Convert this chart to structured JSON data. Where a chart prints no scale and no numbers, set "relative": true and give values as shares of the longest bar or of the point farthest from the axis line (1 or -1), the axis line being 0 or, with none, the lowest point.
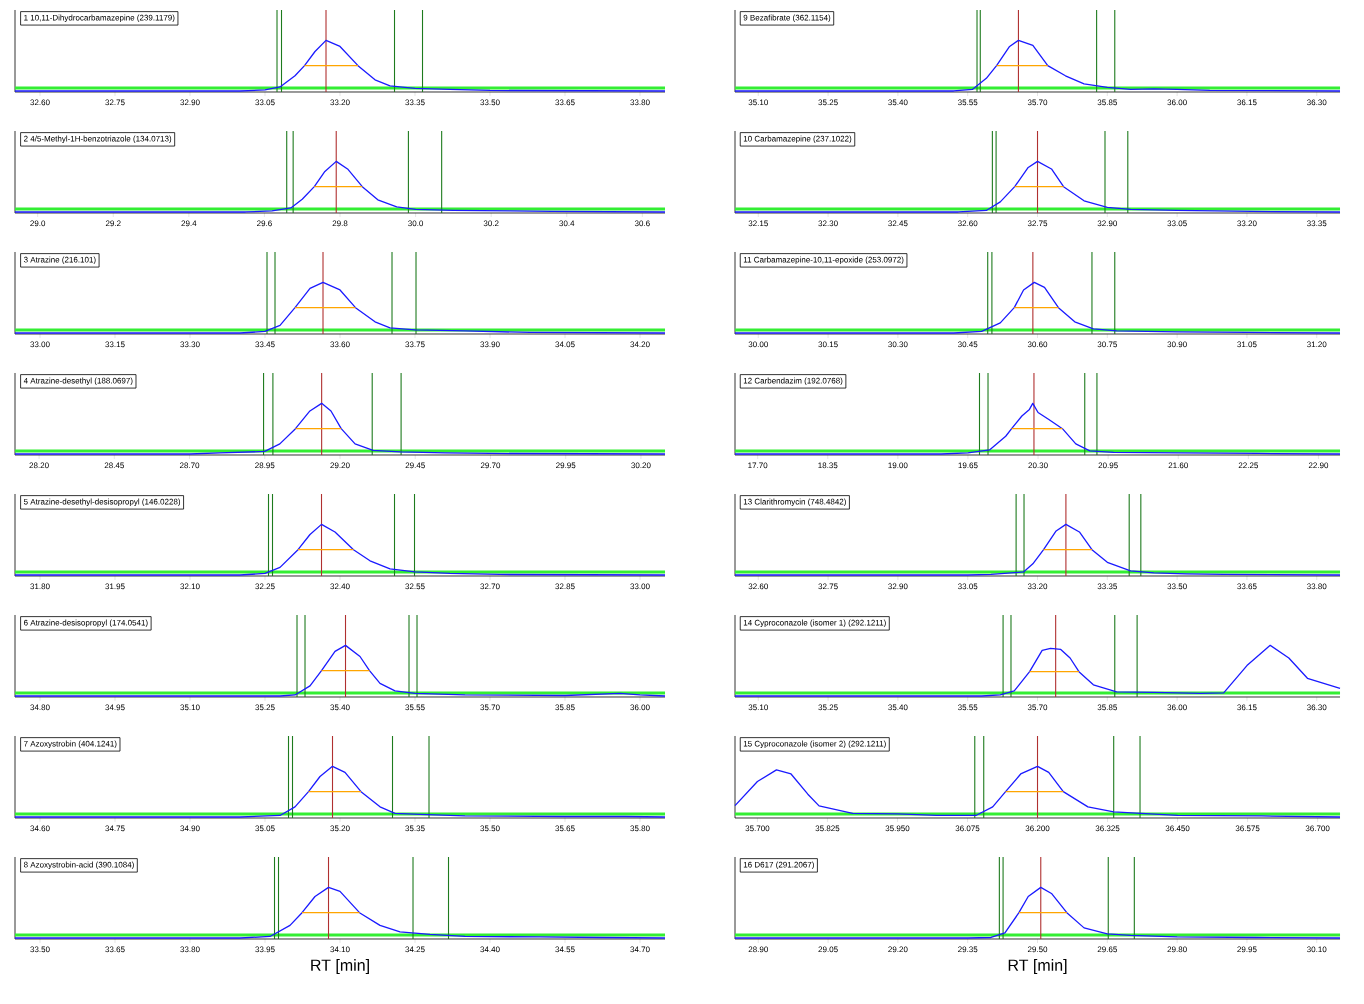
{
  "chart_data": [
    {
      "type": "line",
      "relative": true,
      "title": "1 10,11-Dihydrocarbamazepine (239.1179)",
      "xlim": [
        32.55,
        33.85
      ],
      "xticks": [
        {
          "value": 32.6,
          "label": "32.60"
        },
        {
          "value": 32.75,
          "label": "32.75"
        },
        {
          "value": 32.9,
          "label": "32.90"
        },
        {
          "value": 33.05,
          "label": "33.05"
        },
        {
          "value": 33.2,
          "label": "33.20"
        },
        {
          "value": 33.35,
          "label": "33.35"
        },
        {
          "value": 33.5,
          "label": "33.50"
        },
        {
          "value": 33.65,
          "label": "33.65"
        },
        {
          "value": 33.8,
          "label": "33.80"
        }
      ],
      "bands": [
        {
          "axis": "y",
          "from": 0.03,
          "to": 0.09,
          "color": "#33ee33"
        }
      ],
      "ref_lines": [
        {
          "axis": "x",
          "value": 33.074,
          "color": "#1e7b1e"
        },
        {
          "axis": "x",
          "value": 33.083,
          "color": "#1e7b1e"
        },
        {
          "axis": "x",
          "value": 33.309,
          "color": "#1e7b1e"
        },
        {
          "axis": "x",
          "value": 33.365,
          "color": "#1e7b1e"
        },
        {
          "axis": "x",
          "value": 33.172,
          "color": "#b03030"
        }
      ],
      "series": [
        {
          "color": "#1a1aff",
          "x": [
            32.55,
            33.0,
            33.05,
            33.08,
            33.11,
            33.129,
            33.15,
            33.172,
            33.2,
            33.236,
            33.27,
            33.3,
            33.35,
            33.42,
            33.5,
            33.85
          ],
          "values": [
            0,
            0,
            0.02,
            0.08,
            0.3,
            0.5,
            0.78,
            1,
            0.88,
            0.5,
            0.22,
            0.1,
            0.05,
            0.03,
            0.01,
            0
          ]
        },
        {
          "color": "#ffa500",
          "x": [
            33.129,
            33.236
          ],
          "values": [
            0.5,
            0.5
          ]
        }
      ]
    },
    {
      "type": "line",
      "relative": true,
      "title": "2 4/5-Methyl-1H-benzotriazole (134.0713)",
      "xlim": [
        28.94,
        30.66
      ],
      "xticks": [
        {
          "value": 29.0,
          "label": "29.0"
        },
        {
          "value": 29.2,
          "label": "29.2"
        },
        {
          "value": 29.4,
          "label": "29.4"
        },
        {
          "value": 29.6,
          "label": "29.6"
        },
        {
          "value": 29.8,
          "label": "29.8"
        },
        {
          "value": 30.0,
          "label": "30.0"
        },
        {
          "value": 30.2,
          "label": "30.2"
        },
        {
          "value": 30.4,
          "label": "30.4"
        },
        {
          "value": 30.6,
          "label": "30.6"
        }
      ],
      "bands": [
        {
          "axis": "y",
          "from": 0.03,
          "to": 0.09,
          "color": "#33ee33"
        }
      ],
      "ref_lines": [
        {
          "axis": "x",
          "value": 29.659,
          "color": "#1e7b1e"
        },
        {
          "axis": "x",
          "value": 29.676,
          "color": "#1e7b1e"
        },
        {
          "axis": "x",
          "value": 29.981,
          "color": "#1e7b1e"
        },
        {
          "axis": "x",
          "value": 30.069,
          "color": "#1e7b1e"
        },
        {
          "axis": "x",
          "value": 29.79,
          "color": "#b03030"
        }
      ],
      "series": [
        {
          "color": "#1a1aff",
          "x": [
            28.94,
            29.55,
            29.62,
            29.67,
            29.7,
            29.732,
            29.76,
            29.79,
            29.82,
            29.859,
            29.9,
            29.95,
            30.0,
            30.1,
            30.25,
            30.36,
            30.66
          ],
          "values": [
            0,
            0,
            0.02,
            0.08,
            0.25,
            0.5,
            0.8,
            1,
            0.85,
            0.5,
            0.24,
            0.1,
            0.05,
            0.03,
            0.02,
            0.01,
            0
          ]
        },
        {
          "color": "#ffa500",
          "x": [
            29.732,
            29.859
          ],
          "values": [
            0.5,
            0.5
          ]
        }
      ]
    },
    {
      "type": "line",
      "relative": true,
      "title": "3 Atrazine (216.101)",
      "xlim": [
        32.95,
        34.25
      ],
      "xticks": [
        {
          "value": 33.0,
          "label": "33.00"
        },
        {
          "value": 33.15,
          "label": "33.15"
        },
        {
          "value": 33.3,
          "label": "33.30"
        },
        {
          "value": 33.45,
          "label": "33.45"
        },
        {
          "value": 33.6,
          "label": "33.60"
        },
        {
          "value": 33.75,
          "label": "33.75"
        },
        {
          "value": 33.9,
          "label": "33.90"
        },
        {
          "value": 34.05,
          "label": "34.05"
        },
        {
          "value": 34.2,
          "label": "34.20"
        }
      ],
      "bands": [
        {
          "axis": "y",
          "from": 0.03,
          "to": 0.09,
          "color": "#33ee33"
        }
      ],
      "ref_lines": [
        {
          "axis": "x",
          "value": 33.454,
          "color": "#1e7b1e"
        },
        {
          "axis": "x",
          "value": 33.47,
          "color": "#1e7b1e"
        },
        {
          "axis": "x",
          "value": 33.704,
          "color": "#1e7b1e"
        },
        {
          "axis": "x",
          "value": 33.752,
          "color": "#1e7b1e"
        },
        {
          "axis": "x",
          "value": 33.566,
          "color": "#b03030"
        }
      ],
      "series": [
        {
          "color": "#1a1aff",
          "x": [
            32.95,
            33.4,
            33.45,
            33.48,
            33.51,
            33.54,
            33.566,
            33.6,
            33.631,
            33.67,
            33.7,
            33.75,
            33.85,
            33.98,
            34.25
          ],
          "values": [
            0,
            0,
            0.03,
            0.15,
            0.5,
            0.88,
            1,
            0.85,
            0.5,
            0.22,
            0.1,
            0.06,
            0.04,
            0.01,
            0
          ]
        },
        {
          "color": "#ffa500",
          "x": [
            33.51,
            33.631
          ],
          "values": [
            0.5,
            0.5
          ]
        }
      ]
    },
    {
      "type": "line",
      "relative": true,
      "title": "4 Atrazine-desethyl (188.0697)",
      "xlim": [
        28.12,
        30.28
      ],
      "xticks": [
        {
          "value": 28.2,
          "label": "28.20"
        },
        {
          "value": 28.45,
          "label": "28.45"
        },
        {
          "value": 28.7,
          "label": "28.70"
        },
        {
          "value": 28.95,
          "label": "28.95"
        },
        {
          "value": 29.2,
          "label": "29.20"
        },
        {
          "value": 29.45,
          "label": "29.45"
        },
        {
          "value": 29.7,
          "label": "29.70"
        },
        {
          "value": 29.95,
          "label": "29.95"
        },
        {
          "value": 30.2,
          "label": "30.20"
        }
      ],
      "bands": [
        {
          "axis": "y",
          "from": 0.03,
          "to": 0.09,
          "color": "#33ee33"
        }
      ],
      "ref_lines": [
        {
          "axis": "x",
          "value": 28.946,
          "color": "#1e7b1e"
        },
        {
          "axis": "x",
          "value": 28.977,
          "color": "#1e7b1e"
        },
        {
          "axis": "x",
          "value": 29.307,
          "color": "#1e7b1e"
        },
        {
          "axis": "x",
          "value": 29.403,
          "color": "#1e7b1e"
        },
        {
          "axis": "x",
          "value": 29.139,
          "color": "#b03030"
        }
      ],
      "series": [
        {
          "color": "#1a1aff",
          "x": [
            28.12,
            28.7,
            28.8,
            28.95,
            29.0,
            29.052,
            29.1,
            29.139,
            29.17,
            29.204,
            29.25,
            29.31,
            29.4,
            29.55,
            29.7,
            30.28
          ],
          "values": [
            0,
            0,
            0.02,
            0.05,
            0.2,
            0.5,
            0.85,
            1,
            0.85,
            0.5,
            0.2,
            0.07,
            0.04,
            0.02,
            0.01,
            0
          ]
        },
        {
          "color": "#ffa500",
          "x": [
            29.052,
            29.204
          ],
          "values": [
            0.5,
            0.5
          ]
        }
      ]
    },
    {
      "type": "line",
      "relative": true,
      "title": "5 Atrazine-desethyl-desisopropyl (146.0228)",
      "xlim": [
        31.75,
        33.05
      ],
      "xticks": [
        {
          "value": 31.8,
          "label": "31.80"
        },
        {
          "value": 31.95,
          "label": "31.95"
        },
        {
          "value": 32.1,
          "label": "32.10"
        },
        {
          "value": 32.25,
          "label": "32.25"
        },
        {
          "value": 32.4,
          "label": "32.40"
        },
        {
          "value": 32.55,
          "label": "32.55"
        },
        {
          "value": 32.7,
          "label": "32.70"
        },
        {
          "value": 32.85,
          "label": "32.85"
        },
        {
          "value": 33.0,
          "label": "33.00"
        }
      ],
      "bands": [
        {
          "axis": "y",
          "from": 0.03,
          "to": 0.09,
          "color": "#33ee33"
        }
      ],
      "ref_lines": [
        {
          "axis": "x",
          "value": 32.257,
          "color": "#1e7b1e"
        },
        {
          "axis": "x",
          "value": 32.265,
          "color": "#1e7b1e"
        },
        {
          "axis": "x",
          "value": 32.509,
          "color": "#1e7b1e"
        },
        {
          "axis": "x",
          "value": 32.549,
          "color": "#1e7b1e"
        },
        {
          "axis": "x",
          "value": 32.363,
          "color": "#b03030"
        }
      ],
      "series": [
        {
          "color": "#1a1aff",
          "x": [
            31.75,
            32.2,
            32.25,
            32.28,
            32.316,
            32.34,
            32.363,
            32.39,
            32.427,
            32.46,
            32.5,
            32.55,
            32.62,
            32.72,
            33.05
          ],
          "values": [
            0,
            0,
            0.03,
            0.15,
            0.5,
            0.8,
            1,
            0.85,
            0.5,
            0.28,
            0.12,
            0.06,
            0.03,
            0.01,
            0
          ]
        },
        {
          "color": "#ffa500",
          "x": [
            32.316,
            32.427
          ],
          "values": [
            0.5,
            0.5
          ]
        }
      ]
    },
    {
      "type": "line",
      "relative": true,
      "title": "6 Atrazine-desisopropyl (174.0541)",
      "xlim": [
        34.75,
        36.05
      ],
      "xticks": [
        {
          "value": 34.8,
          "label": "34.80"
        },
        {
          "value": 34.95,
          "label": "34.95"
        },
        {
          "value": 35.1,
          "label": "35.10"
        },
        {
          "value": 35.25,
          "label": "35.25"
        },
        {
          "value": 35.4,
          "label": "35.40"
        },
        {
          "value": 35.55,
          "label": "35.55"
        },
        {
          "value": 35.7,
          "label": "35.70"
        },
        {
          "value": 35.85,
          "label": "35.85"
        },
        {
          "value": 36.0,
          "label": "36.00"
        }
      ],
      "bands": [
        {
          "axis": "y",
          "from": 0.03,
          "to": 0.09,
          "color": "#33ee33"
        }
      ],
      "ref_lines": [
        {
          "axis": "x",
          "value": 35.314,
          "color": "#1e7b1e"
        },
        {
          "axis": "x",
          "value": 35.33,
          "color": "#1e7b1e"
        },
        {
          "axis": "x",
          "value": 35.538,
          "color": "#1e7b1e"
        },
        {
          "axis": "x",
          "value": 35.554,
          "color": "#1e7b1e"
        },
        {
          "axis": "x",
          "value": 35.411,
          "color": "#b03030"
        }
      ],
      "series": [
        {
          "color": "#1a1aff",
          "x": [
            34.75,
            35.28,
            35.31,
            35.34,
            35.363,
            35.39,
            35.411,
            35.44,
            35.459,
            35.48,
            35.51,
            35.55,
            35.65,
            35.85,
            35.96,
            36.0,
            36.05
          ],
          "values": [
            0,
            0,
            0.02,
            0.2,
            0.5,
            0.88,
            1,
            0.78,
            0.5,
            0.25,
            0.1,
            0.05,
            0.02,
            0.01,
            0.05,
            0.02,
            0
          ]
        },
        {
          "color": "#ffa500",
          "x": [
            35.363,
            35.459
          ],
          "values": [
            0.5,
            0.5
          ]
        }
      ]
    },
    {
      "type": "line",
      "relative": true,
      "title": "7 Azoxystrobin (404.1241)",
      "xlim": [
        34.55,
        35.85
      ],
      "xticks": [
        {
          "value": 34.6,
          "label": "34.60"
        },
        {
          "value": 34.75,
          "label": "34.75"
        },
        {
          "value": 34.9,
          "label": "34.90"
        },
        {
          "value": 35.05,
          "label": "35.05"
        },
        {
          "value": 35.2,
          "label": "35.20"
        },
        {
          "value": 35.35,
          "label": "35.35"
        },
        {
          "value": 35.5,
          "label": "35.50"
        },
        {
          "value": 35.65,
          "label": "35.65"
        },
        {
          "value": 35.8,
          "label": "35.80"
        }
      ],
      "bands": [
        {
          "axis": "y",
          "from": 0.03,
          "to": 0.09,
          "color": "#33ee33"
        }
      ],
      "ref_lines": [
        {
          "axis": "x",
          "value": 35.097,
          "color": "#1e7b1e"
        },
        {
          "axis": "x",
          "value": 35.105,
          "color": "#1e7b1e"
        },
        {
          "axis": "x",
          "value": 35.305,
          "color": "#1e7b1e"
        },
        {
          "axis": "x",
          "value": 35.378,
          "color": "#1e7b1e"
        },
        {
          "axis": "x",
          "value": 35.185,
          "color": "#b03030"
        }
      ],
      "series": [
        {
          "color": "#1a1aff",
          "x": [
            34.55,
            35.0,
            35.08,
            35.11,
            35.137,
            35.16,
            35.185,
            35.21,
            35.242,
            35.28,
            35.31,
            35.36,
            35.45,
            35.65,
            35.77,
            35.85
          ],
          "values": [
            0,
            0,
            0.03,
            0.2,
            0.5,
            0.8,
            1,
            0.88,
            0.5,
            0.2,
            0.07,
            0.05,
            0.02,
            0.01,
            0.01,
            0
          ]
        },
        {
          "color": "#ffa500",
          "x": [
            35.137,
            35.242
          ],
          "values": [
            0.5,
            0.5
          ]
        }
      ]
    },
    {
      "type": "line",
      "relative": true,
      "title": "8 Azoxystrobin-acid (390.1084)",
      "xlabel": "RT [min]",
      "xlim": [
        33.45,
        34.75
      ],
      "xticks": [
        {
          "value": 33.5,
          "label": "33.50"
        },
        {
          "value": 33.65,
          "label": "33.65"
        },
        {
          "value": 33.8,
          "label": "33.80"
        },
        {
          "value": 33.95,
          "label": "33.95"
        },
        {
          "value": 34.1,
          "label": "34.10"
        },
        {
          "value": 34.25,
          "label": "34.25"
        },
        {
          "value": 34.4,
          "label": "34.40"
        },
        {
          "value": 34.55,
          "label": "34.55"
        },
        {
          "value": 34.7,
          "label": "34.70"
        }
      ],
      "bands": [
        {
          "axis": "y",
          "from": 0.03,
          "to": 0.09,
          "color": "#33ee33"
        }
      ],
      "ref_lines": [
        {
          "axis": "x",
          "value": 33.969,
          "color": "#1e7b1e"
        },
        {
          "axis": "x",
          "value": 33.977,
          "color": "#1e7b1e"
        },
        {
          "axis": "x",
          "value": 34.246,
          "color": "#1e7b1e"
        },
        {
          "axis": "x",
          "value": 34.317,
          "color": "#1e7b1e"
        },
        {
          "axis": "x",
          "value": 34.077,
          "color": "#b03030"
        }
      ],
      "series": [
        {
          "color": "#1a1aff",
          "x": [
            33.45,
            33.9,
            33.96,
            34.0,
            34.024,
            34.05,
            34.077,
            34.1,
            34.139,
            34.18,
            34.22,
            34.28,
            34.35,
            34.5,
            34.62,
            34.75
          ],
          "values": [
            0,
            0,
            0.03,
            0.25,
            0.5,
            0.82,
            1,
            0.92,
            0.5,
            0.25,
            0.12,
            0.07,
            0.03,
            0.02,
            0.01,
            0
          ]
        },
        {
          "color": "#ffa500",
          "x": [
            34.024,
            34.139
          ],
          "values": [
            0.5,
            0.5
          ]
        }
      ]
    },
    {
      "type": "line",
      "relative": true,
      "title": "9 Bezafibrate (362.1154)",
      "xlim": [
        35.05,
        36.35
      ],
      "xticks": [
        {
          "value": 35.1,
          "label": "35.10"
        },
        {
          "value": 35.25,
          "label": "35.25"
        },
        {
          "value": 35.4,
          "label": "35.40"
        },
        {
          "value": 35.55,
          "label": "35.55"
        },
        {
          "value": 35.7,
          "label": "35.70"
        },
        {
          "value": 35.85,
          "label": "35.85"
        },
        {
          "value": 36.0,
          "label": "36.00"
        },
        {
          "value": 36.15,
          "label": "36.15"
        },
        {
          "value": 36.3,
          "label": "36.30"
        }
      ],
      "bands": [
        {
          "axis": "y",
          "from": 0.03,
          "to": 0.09,
          "color": "#33ee33"
        }
      ],
      "ref_lines": [
        {
          "axis": "x",
          "value": 35.57,
          "color": "#1e7b1e"
        },
        {
          "axis": "x",
          "value": 35.577,
          "color": "#1e7b1e"
        },
        {
          "axis": "x",
          "value": 35.827,
          "color": "#1e7b1e"
        },
        {
          "axis": "x",
          "value": 35.866,
          "color": "#1e7b1e"
        },
        {
          "axis": "x",
          "value": 35.659,
          "color": "#b03030"
        }
      ],
      "series": [
        {
          "color": "#1a1aff",
          "x": [
            35.05,
            35.52,
            35.56,
            35.59,
            35.612,
            35.64,
            35.659,
            35.69,
            35.722,
            35.76,
            35.8,
            35.85,
            35.9,
            35.95,
            36.0,
            36.07,
            36.35
          ],
          "values": [
            0,
            0,
            0.03,
            0.25,
            0.5,
            0.88,
            1,
            0.9,
            0.5,
            0.3,
            0.14,
            0.07,
            0.03,
            0.04,
            0.03,
            0.01,
            0
          ]
        },
        {
          "color": "#ffa500",
          "x": [
            35.612,
            35.722
          ],
          "values": [
            0.5,
            0.5
          ]
        }
      ]
    },
    {
      "type": "line",
      "relative": true,
      "title": "10 Carbamazepine (237.1022)",
      "xlim": [
        32.1,
        33.4
      ],
      "xticks": [
        {
          "value": 32.15,
          "label": "32.15"
        },
        {
          "value": 32.3,
          "label": "32.30"
        },
        {
          "value": 32.45,
          "label": "32.45"
        },
        {
          "value": 32.6,
          "label": "32.60"
        },
        {
          "value": 32.75,
          "label": "32.75"
        },
        {
          "value": 32.9,
          "label": "32.90"
        },
        {
          "value": 33.05,
          "label": "33.05"
        },
        {
          "value": 33.2,
          "label": "33.20"
        },
        {
          "value": 33.35,
          "label": "33.35"
        }
      ],
      "bands": [
        {
          "axis": "y",
          "from": 0.03,
          "to": 0.09,
          "color": "#33ee33"
        }
      ],
      "ref_lines": [
        {
          "axis": "x",
          "value": 32.653,
          "color": "#1e7b1e"
        },
        {
          "axis": "x",
          "value": 32.661,
          "color": "#1e7b1e"
        },
        {
          "axis": "x",
          "value": 32.895,
          "color": "#1e7b1e"
        },
        {
          "axis": "x",
          "value": 32.944,
          "color": "#1e7b1e"
        },
        {
          "axis": "x",
          "value": 32.75,
          "color": "#b03030"
        }
      ],
      "series": [
        {
          "color": "#1a1aff",
          "x": [
            32.1,
            32.58,
            32.64,
            32.67,
            32.701,
            32.73,
            32.75,
            32.78,
            32.806,
            32.85,
            32.9,
            32.95,
            33.05,
            33.21,
            33.4
          ],
          "values": [
            0,
            0,
            0.03,
            0.2,
            0.5,
            0.88,
            1,
            0.85,
            0.5,
            0.22,
            0.09,
            0.05,
            0.03,
            0.01,
            0
          ]
        },
        {
          "color": "#ffa500",
          "x": [
            32.701,
            32.806
          ],
          "values": [
            0.5,
            0.5
          ]
        }
      ]
    },
    {
      "type": "line",
      "relative": true,
      "title": "11 Carbamazepine-10,11-epoxide (253.0972)",
      "xlim": [
        29.95,
        31.25
      ],
      "xticks": [
        {
          "value": 30.0,
          "label": "30.00"
        },
        {
          "value": 30.15,
          "label": "30.15"
        },
        {
          "value": 30.3,
          "label": "30.30"
        },
        {
          "value": 30.45,
          "label": "30.45"
        },
        {
          "value": 30.6,
          "label": "30.60"
        },
        {
          "value": 30.75,
          "label": "30.75"
        },
        {
          "value": 30.9,
          "label": "30.90"
        },
        {
          "value": 31.05,
          "label": "31.05"
        },
        {
          "value": 31.2,
          "label": "31.20"
        }
      ],
      "bands": [
        {
          "axis": "y",
          "from": 0.03,
          "to": 0.09,
          "color": "#33ee33"
        }
      ],
      "ref_lines": [
        {
          "axis": "x",
          "value": 30.493,
          "color": "#1e7b1e"
        },
        {
          "axis": "x",
          "value": 30.502,
          "color": "#1e7b1e"
        },
        {
          "axis": "x",
          "value": 30.717,
          "color": "#1e7b1e"
        },
        {
          "axis": "x",
          "value": 30.766,
          "color": "#1e7b1e"
        },
        {
          "axis": "x",
          "value": 30.59,
          "color": "#b03030"
        }
      ],
      "series": [
        {
          "color": "#1a1aff",
          "x": [
            29.95,
            30.42,
            30.48,
            30.52,
            30.55,
            30.57,
            30.593,
            30.615,
            30.645,
            30.68,
            30.72,
            30.77,
            30.9,
            31.05,
            31.25
          ],
          "values": [
            0,
            0,
            0.03,
            0.2,
            0.5,
            0.85,
            1,
            0.9,
            0.5,
            0.22,
            0.08,
            0.04,
            0.02,
            0.01,
            0
          ]
        },
        {
          "color": "#ffa500",
          "x": [
            30.55,
            30.645
          ],
          "values": [
            0.5,
            0.5
          ]
        }
      ]
    },
    {
      "type": "line",
      "relative": true,
      "title": "12 Carbendazim (192.0768)",
      "xlim": [
        17.49,
        23.1
      ],
      "xticks": [
        {
          "value": 17.7,
          "label": "17.70"
        },
        {
          "value": 18.35,
          "label": "18.35"
        },
        {
          "value": 19.0,
          "label": "19.00"
        },
        {
          "value": 19.65,
          "label": "19.65"
        },
        {
          "value": 20.3,
          "label": "20.30"
        },
        {
          "value": 20.95,
          "label": "20.95"
        },
        {
          "value": 21.6,
          "label": "21.60"
        },
        {
          "value": 22.25,
          "label": "22.25"
        },
        {
          "value": 22.9,
          "label": "22.90"
        }
      ],
      "bands": [
        {
          "axis": "y",
          "from": 0.03,
          "to": 0.09,
          "color": "#33ee33"
        }
      ],
      "ref_lines": [
        {
          "axis": "x",
          "value": 19.757,
          "color": "#1e7b1e"
        },
        {
          "axis": "x",
          "value": 19.836,
          "color": "#1e7b1e"
        },
        {
          "axis": "x",
          "value": 20.733,
          "color": "#1e7b1e"
        },
        {
          "axis": "x",
          "value": 20.846,
          "color": "#1e7b1e"
        },
        {
          "axis": "x",
          "value": 20.262,
          "color": "#b03030"
        }
      ],
      "series": [
        {
          "color": "#1a1aff",
          "x": [
            17.49,
            19.4,
            19.65,
            19.85,
            20.0,
            20.055,
            20.15,
            20.22,
            20.251,
            20.3,
            20.4,
            20.526,
            20.65,
            20.78,
            21.0,
            21.6,
            22.34,
            23.1
          ],
          "values": [
            0,
            0,
            0.02,
            0.08,
            0.35,
            0.5,
            0.75,
            0.88,
            1,
            0.82,
            0.68,
            0.5,
            0.2,
            0.06,
            0.03,
            0.02,
            0.01,
            0
          ]
        },
        {
          "color": "#ffa500",
          "x": [
            20.055,
            20.526
          ],
          "values": [
            0.5,
            0.5
          ]
        }
      ]
    },
    {
      "type": "line",
      "relative": true,
      "title": "13 Clarithromycin (748.4842)",
      "xlim": [
        32.55,
        33.85
      ],
      "xticks": [
        {
          "value": 32.6,
          "label": "32.60"
        },
        {
          "value": 32.75,
          "label": "32.75"
        },
        {
          "value": 32.9,
          "label": "32.90"
        },
        {
          "value": 33.05,
          "label": "33.05"
        },
        {
          "value": 33.2,
          "label": "33.20"
        },
        {
          "value": 33.35,
          "label": "33.35"
        },
        {
          "value": 33.5,
          "label": "33.50"
        },
        {
          "value": 33.65,
          "label": "33.65"
        },
        {
          "value": 33.8,
          "label": "33.80"
        }
      ],
      "bands": [
        {
          "axis": "y",
          "from": 0.03,
          "to": 0.09,
          "color": "#33ee33"
        }
      ],
      "ref_lines": [
        {
          "axis": "x",
          "value": 33.154,
          "color": "#1e7b1e"
        },
        {
          "axis": "x",
          "value": 33.171,
          "color": "#1e7b1e"
        },
        {
          "axis": "x",
          "value": 33.397,
          "color": "#1e7b1e"
        },
        {
          "axis": "x",
          "value": 33.422,
          "color": "#1e7b1e"
        },
        {
          "axis": "x",
          "value": 33.261,
          "color": "#b03030"
        }
      ],
      "series": [
        {
          "color": "#1a1aff",
          "x": [
            32.55,
            33.05,
            33.1,
            33.17,
            33.19,
            33.213,
            33.24,
            33.261,
            33.29,
            33.317,
            33.35,
            33.4,
            33.45,
            33.52,
            33.6,
            33.85
          ],
          "values": [
            0,
            0,
            0.01,
            0.06,
            0.22,
            0.5,
            0.87,
            1,
            0.85,
            0.5,
            0.25,
            0.08,
            0.04,
            0.02,
            0.01,
            0
          ]
        },
        {
          "color": "#ffa500",
          "x": [
            33.213,
            33.317
          ],
          "values": [
            0.5,
            0.5
          ]
        }
      ]
    },
    {
      "type": "line",
      "relative": true,
      "title": "14 Cyproconazole (isomer 1) (292.1211)",
      "xlim": [
        35.05,
        36.35
      ],
      "xticks": [
        {
          "value": 35.1,
          "label": "35.10"
        },
        {
          "value": 35.25,
          "label": "35.25"
        },
        {
          "value": 35.4,
          "label": "35.40"
        },
        {
          "value": 35.55,
          "label": "35.55"
        },
        {
          "value": 35.7,
          "label": "35.70"
        },
        {
          "value": 35.85,
          "label": "35.85"
        },
        {
          "value": 36.0,
          "label": "36.00"
        },
        {
          "value": 36.15,
          "label": "36.15"
        },
        {
          "value": 36.3,
          "label": "36.30"
        }
      ],
      "bands": [
        {
          "axis": "y",
          "from": 0.03,
          "to": 0.09,
          "color": "#33ee33"
        }
      ],
      "ref_lines": [
        {
          "axis": "x",
          "value": 35.626,
          "color": "#1e7b1e"
        },
        {
          "axis": "x",
          "value": 35.643,
          "color": "#1e7b1e"
        },
        {
          "axis": "x",
          "value": 35.866,
          "color": "#1e7b1e"
        },
        {
          "axis": "x",
          "value": 35.914,
          "color": "#1e7b1e"
        },
        {
          "axis": "x",
          "value": 35.739,
          "color": "#b03030"
        }
      ],
      "series": [
        {
          "color": "#1a1aff",
          "x": [
            35.05,
            35.58,
            35.62,
            35.65,
            35.683,
            35.71,
            35.728,
            35.75,
            35.77,
            35.789,
            35.82,
            35.87,
            35.95,
            36.05,
            36.1,
            36.15,
            36.2,
            36.24,
            36.28,
            36.35
          ],
          "values": [
            0,
            0,
            0.02,
            0.1,
            0.48,
            0.9,
            0.94,
            0.92,
            0.75,
            0.48,
            0.22,
            0.08,
            0.07,
            0.05,
            0.06,
            0.6,
            1,
            0.75,
            0.35,
            0.15
          ]
        },
        {
          "color": "#ffa500",
          "x": [
            35.683,
            35.789
          ],
          "values": [
            0.48,
            0.48
          ]
        }
      ]
    },
    {
      "type": "line",
      "relative": true,
      "title": "15 Cyproconazole (isomer 2) (292.1211)",
      "xlim": [
        35.66,
        36.74
      ],
      "xticks": [
        {
          "value": 35.7,
          "label": "35.700"
        },
        {
          "value": 35.825,
          "label": "35.825"
        },
        {
          "value": 35.95,
          "label": "35.950"
        },
        {
          "value": 36.075,
          "label": "36.075"
        },
        {
          "value": 36.2,
          "label": "36.200"
        },
        {
          "value": 36.325,
          "label": "36.325"
        },
        {
          "value": 36.45,
          "label": "36.450"
        },
        {
          "value": 36.575,
          "label": "36.575"
        },
        {
          "value": 36.7,
          "label": "36.700"
        }
      ],
      "bands": [
        {
          "axis": "y",
          "from": 0.03,
          "to": 0.09,
          "color": "#33ee33"
        }
      ],
      "ref_lines": [
        {
          "axis": "x",
          "value": 36.088,
          "color": "#1e7b1e"
        },
        {
          "axis": "x",
          "value": 36.104,
          "color": "#1e7b1e"
        },
        {
          "axis": "x",
          "value": 36.336,
          "color": "#1e7b1e"
        },
        {
          "axis": "x",
          "value": 36.383,
          "color": "#1e7b1e"
        },
        {
          "axis": "x",
          "value": 36.2,
          "color": "#b03030"
        }
      ],
      "series": [
        {
          "color": "#1a1aff",
          "x": [
            35.66,
            35.7,
            35.734,
            35.76,
            35.79,
            35.81,
            35.87,
            35.95,
            36.02,
            36.09,
            36.12,
            36.143,
            36.17,
            36.2,
            36.22,
            36.246,
            36.29,
            36.336,
            36.45,
            36.6,
            36.74
          ],
          "values": [
            0.225,
            0.7,
            0.93,
            0.85,
            0.45,
            0.22,
            0.07,
            0.06,
            0.03,
            0.03,
            0.2,
            0.5,
            0.85,
            1,
            0.88,
            0.5,
            0.2,
            0.1,
            0.03,
            0.02,
            0
          ]
        },
        {
          "color": "#ffa500",
          "x": [
            36.143,
            36.246
          ],
          "values": [
            0.5,
            0.5
          ]
        }
      ]
    },
    {
      "type": "line",
      "relative": true,
      "title": "16 D617 (291.2067)",
      "xlabel": "RT [min]",
      "xlim": [
        28.85,
        30.15
      ],
      "xticks": [
        {
          "value": 28.9,
          "label": "28.90"
        },
        {
          "value": 29.05,
          "label": "29.05"
        },
        {
          "value": 29.2,
          "label": "29.20"
        },
        {
          "value": 29.35,
          "label": "29.35"
        },
        {
          "value": 29.5,
          "label": "29.50"
        },
        {
          "value": 29.65,
          "label": "29.65"
        },
        {
          "value": 29.8,
          "label": "29.80"
        },
        {
          "value": 29.95,
          "label": "29.95"
        },
        {
          "value": 30.1,
          "label": "30.10"
        }
      ],
      "bands": [
        {
          "axis": "y",
          "from": 0.03,
          "to": 0.09,
          "color": "#33ee33"
        }
      ],
      "ref_lines": [
        {
          "axis": "x",
          "value": 29.418,
          "color": "#1e7b1e"
        },
        {
          "axis": "x",
          "value": 29.426,
          "color": "#1e7b1e"
        },
        {
          "axis": "x",
          "value": 29.652,
          "color": "#1e7b1e"
        },
        {
          "axis": "x",
          "value": 29.708,
          "color": "#1e7b1e"
        },
        {
          "axis": "x",
          "value": 29.507,
          "color": "#b03030"
        }
      ],
      "series": [
        {
          "color": "#1a1aff",
          "x": [
            28.85,
            29.35,
            29.4,
            29.43,
            29.46,
            29.48,
            29.507,
            29.53,
            29.563,
            29.6,
            29.65,
            29.7,
            29.8,
            29.97,
            30.15
          ],
          "values": [
            0,
            0,
            0.01,
            0.1,
            0.5,
            0.82,
            1,
            0.88,
            0.5,
            0.2,
            0.08,
            0.05,
            0.02,
            0.01,
            0
          ]
        },
        {
          "color": "#ffa500",
          "x": [
            29.46,
            29.563
          ],
          "values": [
            0.5,
            0.5
          ]
        }
      ]
    }
  ]
}
